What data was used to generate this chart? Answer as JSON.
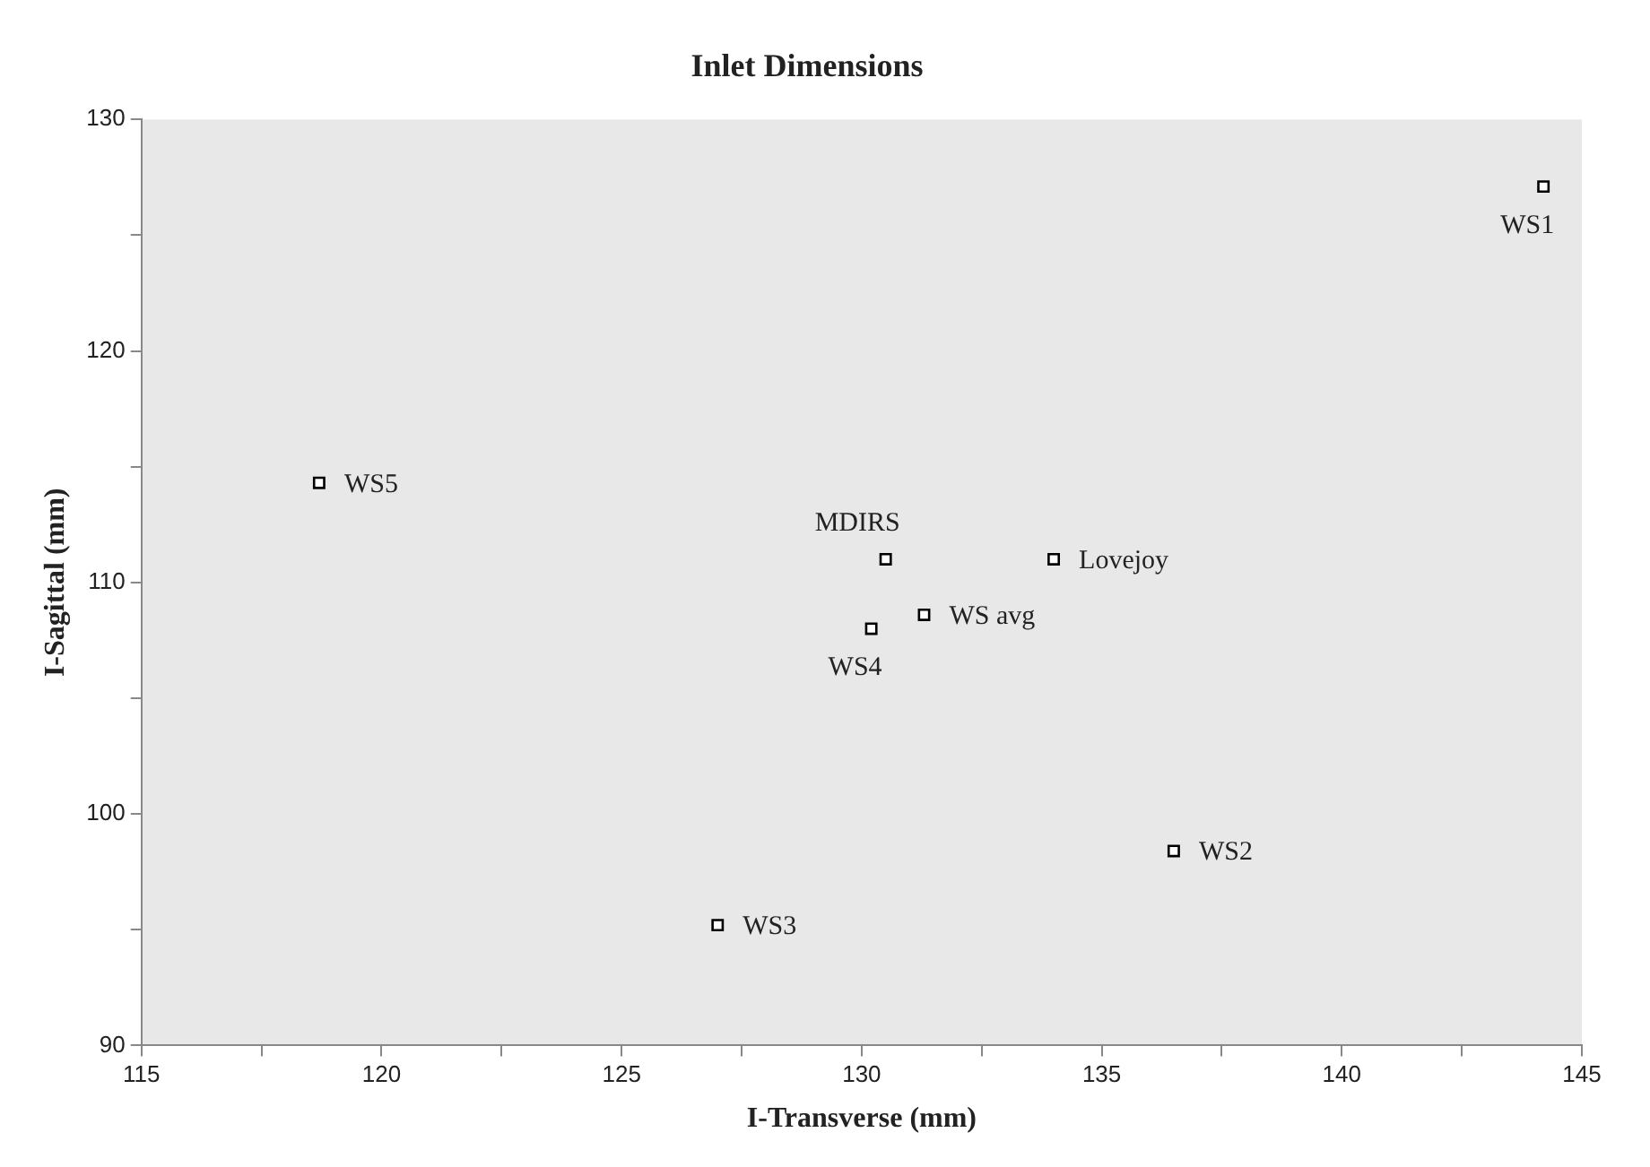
{
  "chart_data": {
    "type": "scatter",
    "title": "Inlet Dimensions",
    "xlabel": "I-Transverse (mm)",
    "ylabel": "I-Sagittal (mm)",
    "x": [
      144.2,
      136.5,
      127.0,
      130.2,
      118.7,
      130.5,
      134.0,
      131.3
    ],
    "series": [
      {
        "color": "#000000",
        "values": [
          127.1,
          98.4,
          95.2,
          108.0,
          114.3,
          111.0,
          111.0,
          108.6
        ]
      }
    ],
    "annotations": [
      {
        "text": "WS1",
        "x": 144.2,
        "y": 127.1
      },
      {
        "text": "WS2",
        "x": 136.5,
        "y": 98.4
      },
      {
        "text": "WS3",
        "x": 127.0,
        "y": 95.2
      },
      {
        "text": "WS4",
        "x": 130.2,
        "y": 108.0
      },
      {
        "text": "WS5",
        "x": 118.7,
        "y": 114.3
      },
      {
        "text": "MDIRS",
        "x": 130.5,
        "y": 111.0
      },
      {
        "text": "Lovejoy",
        "x": 134.0,
        "y": 111.0
      },
      {
        "text": "WS avg",
        "x": 131.3,
        "y": 108.6
      }
    ],
    "xlim": [
      115,
      145
    ],
    "ylim": [
      90,
      130
    ],
    "xticks": [
      115,
      {
        "value": 117.5,
        "label": null
      },
      120,
      {
        "value": 122.5,
        "label": null
      },
      125,
      {
        "value": 127.5,
        "label": null
      },
      130,
      {
        "value": 132.5,
        "label": null
      },
      135,
      {
        "value": 137.5,
        "label": null
      },
      140,
      {
        "value": 142.5,
        "label": null
      },
      145
    ],
    "yticks": [
      90,
      {
        "value": 95,
        "label": null
      },
      100,
      {
        "value": 105,
        "label": null
      },
      110,
      {
        "value": 115,
        "label": null
      },
      120,
      {
        "value": 125,
        "label": null
      },
      130
    ],
    "grid": false,
    "legend": false,
    "marker": "square"
  }
}
